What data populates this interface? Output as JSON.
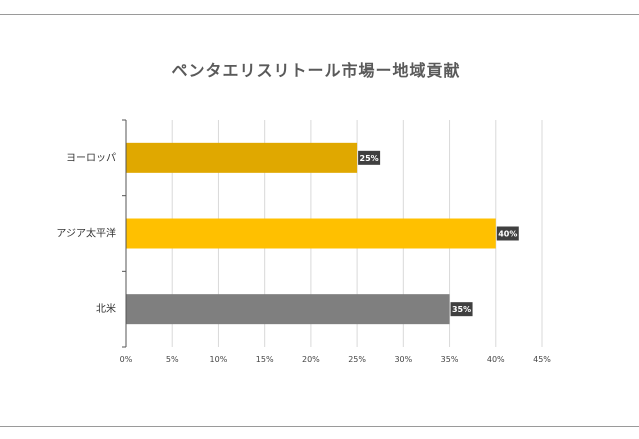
{
  "chart_data": {
    "type": "bar",
    "orientation": "horizontal",
    "title": "ペンタエリスリトール市場ー地域貢献",
    "categories": [
      "ヨーロッパ",
      "アジア太平洋",
      "北米"
    ],
    "values": [
      25,
      40,
      35
    ],
    "data_labels": [
      "25%",
      "40%",
      "35%"
    ],
    "bar_colors": [
      "#e0a800",
      "#ffc000",
      "#7f7f7f"
    ],
    "xlim": [
      0,
      45
    ],
    "x_ticks": [
      0,
      5,
      10,
      15,
      20,
      25,
      30,
      35,
      40,
      45
    ],
    "x_tick_labels": [
      "0%",
      "5%",
      "10%",
      "15%",
      "20%",
      "25%",
      "30%",
      "35%",
      "40%",
      "45%"
    ],
    "grid": true,
    "legend": "none",
    "xlabel": "",
    "ylabel": ""
  },
  "colors": {
    "label_box": "#404040",
    "grid": "#d9d9d9",
    "axis": "#555555",
    "title": "#5a5a5a"
  }
}
